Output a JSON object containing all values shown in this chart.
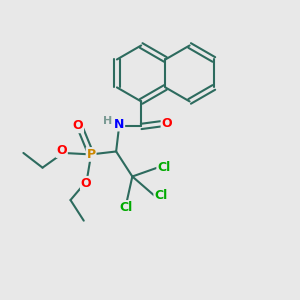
{
  "background_color": "#e8e8e8",
  "bond_color": "#2d6b5e",
  "bond_width": 1.5,
  "dbo": 0.09,
  "atom_colors": {
    "C": "#2d6b5e",
    "H": "#7a9a94",
    "N": "#0000ff",
    "O": "#ff0000",
    "P": "#cc8800",
    "Cl": "#00aa00"
  },
  "fs": 9
}
